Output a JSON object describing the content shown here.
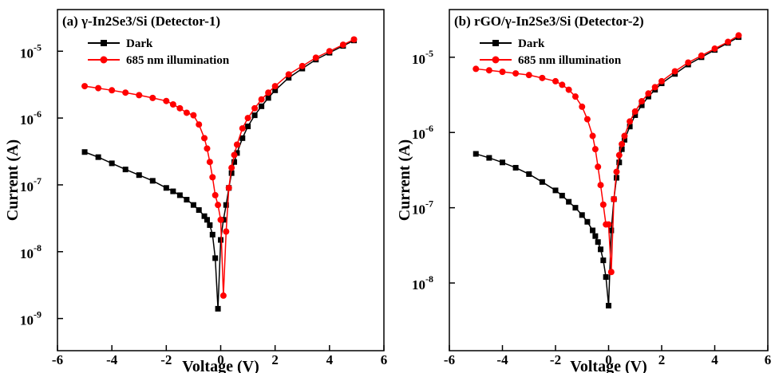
{
  "chart_data": [
    {
      "type": "line",
      "title": "(a) γ-In2Se3/Si (Detector-1)",
      "xlabel": "Voltage (V)",
      "ylabel": "Current (A)",
      "log_y": true,
      "xlim": [
        -6,
        6
      ],
      "ylim": [
        3.3e-10,
        4.2e-05
      ],
      "xticks": [
        -6,
        -4,
        -2,
        0,
        2,
        4,
        6
      ],
      "yticks": [
        {
          "value": 1e-09,
          "label": "10",
          "sup": "-9"
        },
        {
          "value": 1e-08,
          "label": "10",
          "sup": "-8"
        },
        {
          "value": 1e-07,
          "label": "10",
          "sup": "-7"
        },
        {
          "value": 1e-06,
          "label": "10",
          "sup": "-6"
        },
        {
          "value": 1e-05,
          "label": "10",
          "sup": "-5"
        }
      ],
      "x": [
        -5,
        -4.5,
        -4,
        -3.5,
        -3,
        -2.5,
        -2,
        -1.75,
        -1.5,
        -1.25,
        -1,
        -0.8,
        -0.6,
        -0.5,
        -0.4,
        -0.3,
        -0.2,
        -0.1,
        0,
        0.1,
        0.2,
        0.3,
        0.4,
        0.5,
        0.6,
        0.8,
        1,
        1.25,
        1.5,
        1.75,
        2,
        2.5,
        3,
        3.5,
        4,
        4.5,
        4.9
      ],
      "series": [
        {
          "name": "Dark",
          "color": "#000000",
          "marker": "square",
          "values": [
            3.1e-07,
            2.6e-07,
            2.1e-07,
            1.7e-07,
            1.4e-07,
            1.15e-07,
            9e-08,
            8e-08,
            7e-08,
            6e-08,
            5e-08,
            4.2e-08,
            3.4e-08,
            3e-08,
            2.5e-08,
            1.8e-08,
            8e-09,
            1.4e-09,
            1.5e-08,
            3e-08,
            5e-08,
            9e-08,
            1.5e-07,
            2.2e-07,
            3e-07,
            5e-07,
            7.5e-07,
            1.1e-06,
            1.5e-06,
            2e-06,
            2.6e-06,
            4e-06,
            5.5e-06,
            7.5e-06,
            9.5e-06,
            1.2e-05,
            1.45e-05
          ]
        },
        {
          "name": "685 nm illumination",
          "color": "#ff0000",
          "marker": "circle",
          "values": [
            3e-06,
            2.8e-06,
            2.6e-06,
            2.4e-06,
            2.2e-06,
            2e-06,
            1.8e-06,
            1.6e-06,
            1.4e-06,
            1.2e-06,
            1.1e-06,
            8e-07,
            5e-07,
            3.5e-07,
            2.2e-07,
            1.3e-07,
            7e-08,
            5e-08,
            3e-08,
            2.2e-09,
            2e-08,
            9e-08,
            1.8e-07,
            2.8e-07,
            4e-07,
            7e-07,
            1e-06,
            1.4e-06,
            1.9e-06,
            2.4e-06,
            3e-06,
            4.5e-06,
            6e-06,
            8e-06,
            1e-05,
            1.25e-05,
            1.5e-05
          ]
        }
      ]
    },
    {
      "type": "line",
      "title": "(b) rGO/γ-In2Se3/Si (Detector-2)",
      "xlabel": "Voltage (V)",
      "ylabel": "Current (A)",
      "log_y": true,
      "xlim": [
        -6,
        6
      ],
      "ylim": [
        1.26e-09,
        4.3e-05
      ],
      "xticks": [
        -6,
        -4,
        -2,
        0,
        2,
        4,
        6
      ],
      "yticks": [
        {
          "value": 1e-08,
          "label": "10",
          "sup": "-8"
        },
        {
          "value": 1e-07,
          "label": "10",
          "sup": "-7"
        },
        {
          "value": 1e-06,
          "label": "10",
          "sup": "-6"
        },
        {
          "value": 1e-05,
          "label": "10",
          "sup": "-5"
        }
      ],
      "x": [
        -5,
        -4.5,
        -4,
        -3.5,
        -3,
        -2.5,
        -2,
        -1.75,
        -1.5,
        -1.25,
        -1,
        -0.8,
        -0.6,
        -0.5,
        -0.4,
        -0.3,
        -0.2,
        -0.1,
        0,
        0.1,
        0.2,
        0.3,
        0.4,
        0.5,
        0.6,
        0.8,
        1,
        1.25,
        1.5,
        1.75,
        2,
        2.5,
        3,
        3.5,
        4,
        4.5,
        4.9
      ],
      "series": [
        {
          "name": "Dark",
          "color": "#000000",
          "marker": "square",
          "values": [
            5.2e-07,
            4.6e-07,
            4e-07,
            3.4e-07,
            2.8e-07,
            2.2e-07,
            1.7e-07,
            1.45e-07,
            1.2e-07,
            1e-07,
            8e-08,
            6.5e-08,
            5e-08,
            4.2e-08,
            3.5e-08,
            2.8e-08,
            2e-08,
            1.2e-08,
            5e-09,
            5e-08,
            1.3e-07,
            2.5e-07,
            4e-07,
            6e-07,
            8e-07,
            1.2e-06,
            1.7e-06,
            2.3e-06,
            3e-06,
            3.7e-06,
            4.5e-06,
            6e-06,
            8e-06,
            1e-05,
            1.25e-05,
            1.55e-05,
            1.85e-05
          ]
        },
        {
          "name": "685 nm illumination",
          "color": "#ff0000",
          "marker": "circle",
          "values": [
            7e-06,
            6.7e-06,
            6.4e-06,
            6.1e-06,
            5.8e-06,
            5.3e-06,
            4.8e-06,
            4.3e-06,
            3.7e-06,
            3e-06,
            2.2e-06,
            1.5e-06,
            9e-07,
            6e-07,
            3.5e-07,
            2e-07,
            1.1e-07,
            6e-08,
            6e-08,
            1.4e-08,
            1.3e-07,
            3e-07,
            5e-07,
            7e-07,
            9e-07,
            1.4e-06,
            1.9e-06,
            2.6e-06,
            3.3e-06,
            4e-06,
            4.8e-06,
            6.5e-06,
            8.5e-06,
            1.05e-05,
            1.3e-05,
            1.6e-05,
            1.95e-05
          ]
        }
      ]
    }
  ]
}
